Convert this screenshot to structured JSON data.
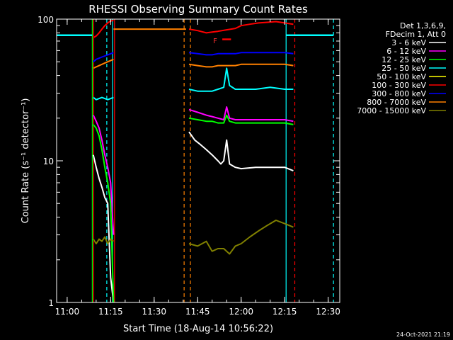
{
  "chart_data": {
    "type": "line",
    "title": "RHESSI Observing Summary Count Rates",
    "xlabel": "Start Time (18-Aug-14 10:56:22)",
    "ylabel": "Count Rate (s⁻¹ detector⁻¹)",
    "yscale": "log",
    "ylim": [
      1,
      100
    ],
    "xlim": [
      "10:56:22",
      "12:34:00"
    ],
    "x_ticks": [
      "11:00",
      "11:15",
      "11:30",
      "11:45",
      "12:00",
      "12:15",
      "12:30"
    ],
    "y_ticks": [
      "1",
      "10",
      "100"
    ],
    "grid": false,
    "legend_position": "right",
    "legend_header": [
      "Det 1,3,6,9,",
      "FDecim 1, Att 0"
    ],
    "flare_marker": "F",
    "timestamp": "24-Oct-2021 21:19",
    "series": [
      {
        "name": "3 - 6 keV",
        "color": "#ffffff",
        "segments": [
          {
            "t": [
              "11:09",
              "11:10",
              "11:11",
              "11:12",
              "11:13",
              "11:14",
              "11:15",
              "11:16"
            ],
            "v": [
              11,
              9,
              7.5,
              6.5,
              5.5,
              5,
              1.5,
              1
            ]
          },
          {
            "t": [
              "11:42",
              "11:44",
              "11:46",
              "11:48",
              "11:50",
              "11:52",
              "11:53",
              "11:54",
              "11:55",
              "11:56",
              "11:58",
              "12:00",
              "12:05",
              "12:10",
              "12:15",
              "12:18"
            ],
            "v": [
              16,
              14,
              13,
              12,
              11,
              10,
              9.5,
              10,
              14,
              9.5,
              9,
              8.8,
              9,
              9,
              9,
              8.5
            ]
          }
        ]
      },
      {
        "name": "6 - 12 keV",
        "color": "#ff00ff",
        "segments": [
          {
            "t": [
              "11:09",
              "11:10",
              "11:11",
              "11:12",
              "11:13",
              "11:14",
              "11:15",
              "11:16"
            ],
            "v": [
              21,
              19,
              17,
              14,
              11,
              9,
              7,
              3
            ]
          },
          {
            "t": [
              "11:42",
              "11:45",
              "11:48",
              "11:50",
              "11:52",
              "11:54",
              "11:55",
              "11:56",
              "11:58",
              "12:00",
              "12:05",
              "12:10",
              "12:15",
              "12:18"
            ],
            "v": [
              23,
              22,
              21,
              20.5,
              20,
              19.5,
              24,
              20,
              19.5,
              19.5,
              19.5,
              19.5,
              19.5,
              19
            ]
          }
        ]
      },
      {
        "name": "12 - 25 keV",
        "color": "#00ff00",
        "segments": [
          {
            "t": [
              "11:09",
              "11:10",
              "11:11",
              "11:12",
              "11:13",
              "11:14",
              "11:15",
              "11:16"
            ],
            "v": [
              18,
              17,
              15,
              12,
              9,
              7,
              5,
              1
            ]
          },
          {
            "t": [
              "11:42",
              "11:45",
              "11:48",
              "11:50",
              "11:52",
              "11:54",
              "11:55",
              "11:56",
              "11:58",
              "12:00",
              "12:05",
              "12:10",
              "12:15",
              "12:18"
            ],
            "v": [
              20,
              19.5,
              19,
              19,
              18.5,
              18.5,
              21,
              19,
              18.5,
              18.5,
              18.5,
              18.5,
              18.5,
              18
            ]
          }
        ]
      },
      {
        "name": "25 - 50 keV",
        "color": "#00ffff",
        "segments": [
          {
            "t": [
              "11:09",
              "11:10",
              "11:12",
              "11:14",
              "11:16"
            ],
            "v": [
              28,
              27,
              28,
              27,
              28
            ]
          },
          {
            "t": [
              "11:42",
              "11:45",
              "11:48",
              "11:50",
              "11:52",
              "11:54",
              "11:55",
              "11:56",
              "11:58",
              "12:00",
              "12:05",
              "12:10",
              "12:15",
              "12:18"
            ],
            "v": [
              32,
              31,
              31,
              31,
              32,
              33,
              45,
              34,
              32,
              32,
              32,
              33,
              32,
              32
            ]
          }
        ]
      },
      {
        "name": "50 - 100 keV",
        "color": "#ffff00",
        "segments": []
      },
      {
        "name": "100 - 300 keV",
        "color": "#ff0000",
        "segments": [
          {
            "t": [
              "11:09",
              "11:10",
              "11:11",
              "11:12",
              "11:13",
              "11:14",
              "11:15",
              "11:16"
            ],
            "v": [
              74,
              76,
              80,
              85,
              90,
              94,
              97,
              98
            ]
          },
          {
            "t": [
              "11:42",
              "11:45",
              "11:48",
              "11:50",
              "11:52",
              "11:55",
              "11:58",
              "12:00",
              "12:03",
              "12:06",
              "12:09",
              "12:12",
              "12:15",
              "12:18"
            ],
            "v": [
              85,
              83,
              80,
              81,
              82,
              84,
              86,
              90,
              92,
              94,
              95,
              96,
              94,
              92
            ]
          }
        ]
      },
      {
        "name": "300 - 800 keV",
        "color": "#0000ff",
        "segments": [
          {
            "t": [
              "11:09",
              "11:10",
              "11:12",
              "11:14",
              "11:16"
            ],
            "v": [
              50,
              52,
              54,
              56,
              58
            ]
          },
          {
            "t": [
              "11:42",
              "11:45",
              "11:48",
              "11:50",
              "11:52",
              "11:55",
              "11:58",
              "12:00",
              "12:05",
              "12:10",
              "12:15",
              "12:18"
            ],
            "v": [
              58,
              57,
              56,
              56,
              57,
              57,
              57,
              58,
              58,
              58,
              58,
              57
            ]
          }
        ]
      },
      {
        "name": "800 - 7000 keV",
        "color": "#ff8000",
        "segments": [
          {
            "t": [
              "11:09",
              "11:10",
              "11:12",
              "11:14",
              "11:16"
            ],
            "v": [
              45,
              46,
              48,
              50,
              52
            ]
          },
          {
            "t": [
              "11:16",
              "11:41"
            ],
            "v": [
              85,
              85
            ]
          },
          {
            "t": [
              "11:42",
              "11:45",
              "11:48",
              "11:50",
              "11:52",
              "11:55",
              "11:58",
              "12:00",
              "12:05",
              "12:10",
              "12:15",
              "12:18"
            ],
            "v": [
              48,
              47,
              46,
              46,
              47,
              47,
              47,
              48,
              48,
              48,
              48,
              47
            ]
          }
        ]
      },
      {
        "name": "7000 - 15000 keV",
        "color": "#808000",
        "segments": [
          {
            "t": [
              "11:09",
              "11:10",
              "11:11",
              "11:12",
              "11:13",
              "11:14",
              "11:15",
              "11:16"
            ],
            "v": [
              2.8,
              2.6,
              2.8,
              2.7,
              2.9,
              2.6,
              2.8,
              2.7
            ]
          },
          {
            "t": [
              "11:42",
              "11:45",
              "11:48",
              "11:50",
              "11:52",
              "11:54",
              "11:56",
              "11:58",
              "12:00",
              "12:03",
              "12:06",
              "12:09",
              "12:12",
              "12:15",
              "12:18"
            ],
            "v": [
              2.6,
              2.5,
              2.7,
              2.3,
              2.4,
              2.4,
              2.2,
              2.5,
              2.6,
              2.9,
              3.2,
              3.5,
              3.8,
              3.6,
              3.4
            ]
          }
        ]
      }
    ],
    "vertical_markers": [
      {
        "t": "11:08:40",
        "color": "#00ff00",
        "style": "solid"
      },
      {
        "t": "11:09:10",
        "color": "#ff0000",
        "style": "solid"
      },
      {
        "t": "11:13:40",
        "color": "#00ffff",
        "style": "dashed"
      },
      {
        "t": "11:15:40",
        "color": "#00ffff",
        "style": "solid"
      },
      {
        "t": "11:16:20",
        "color": "#ff0000",
        "style": "solid"
      },
      {
        "t": "11:40:20",
        "color": "#ff8000",
        "style": "dashed"
      },
      {
        "t": "11:42:30",
        "color": "#ff8000",
        "style": "dashed"
      },
      {
        "t": "12:15:30",
        "color": "#00ffff",
        "style": "solid"
      },
      {
        "t": "12:18:30",
        "color": "#ff0000",
        "style": "dashed"
      },
      {
        "t": "12:31:50",
        "color": "#00ffff",
        "style": "dashed"
      }
    ],
    "horizontal_markers": [
      {
        "t": [
          "10:56:22",
          "11:08:40"
        ],
        "v": 77,
        "color": "#00ffff"
      },
      {
        "t": [
          "12:15:30",
          "12:31:50"
        ],
        "v": 77,
        "color": "#00ffff"
      }
    ],
    "flare_bar": {
      "t": [
        "11:53:30",
        "11:56:30"
      ],
      "v": 72,
      "color": "#ff0000"
    }
  }
}
